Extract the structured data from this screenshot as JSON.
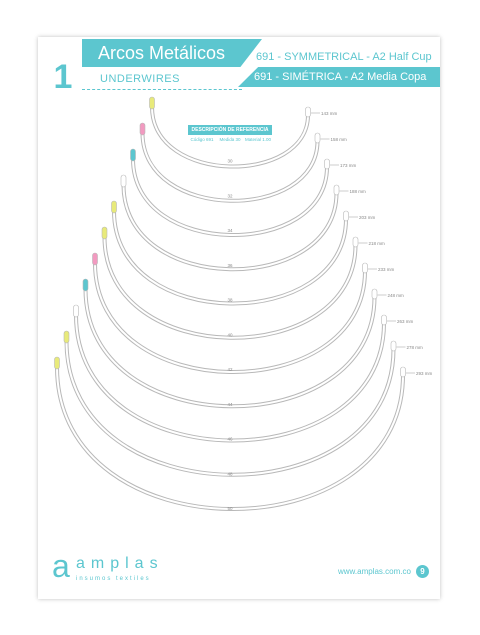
{
  "header": {
    "chapter": "1",
    "title": "Arcos Metálicos",
    "subtitle": "UNDERWIRES",
    "model_en": "691 - SYMMETRICAL - A2 Half Cup",
    "model_es": "691 - SIMÉTRICA - A2 Media Copa"
  },
  "reference": {
    "title": "DESCRIPCIÓN DE REFERENCIA",
    "fields": [
      "Código 691",
      "Medida 30",
      "Material 1.00"
    ]
  },
  "colors": {
    "accent": "#5cc6cf",
    "tip_yellow": "#e8ea7a",
    "tip_pink": "#f29ac0",
    "tip_blue": "#5cc6cf",
    "tip_white": "#ffffff"
  },
  "wires": [
    {
      "size": "30",
      "length": "143 mm",
      "tip": "yellow"
    },
    {
      "size": "32",
      "length": "158 mm",
      "tip": "pink"
    },
    {
      "size": "34",
      "length": "173 mm",
      "tip": "blue"
    },
    {
      "size": "36",
      "length": "188 mm",
      "tip": "white"
    },
    {
      "size": "38",
      "length": "203 mm",
      "tip": "yellow"
    },
    {
      "size": "40",
      "length": "218 mm",
      "tip": "yellow"
    },
    {
      "size": "42",
      "length": "233 mm",
      "tip": "pink"
    },
    {
      "size": "44",
      "length": "248 mm",
      "tip": "blue"
    },
    {
      "size": "46",
      "length": "263 mm",
      "tip": "white"
    },
    {
      "size": "48",
      "length": "278 mm",
      "tip": "yellow"
    },
    {
      "size": "50",
      "length": "293 mm",
      "tip": "yellow"
    }
  ],
  "footer": {
    "brand": "amplas",
    "tagline": "insumos textiles",
    "website": "www.amplas.com.co",
    "page": "9"
  }
}
